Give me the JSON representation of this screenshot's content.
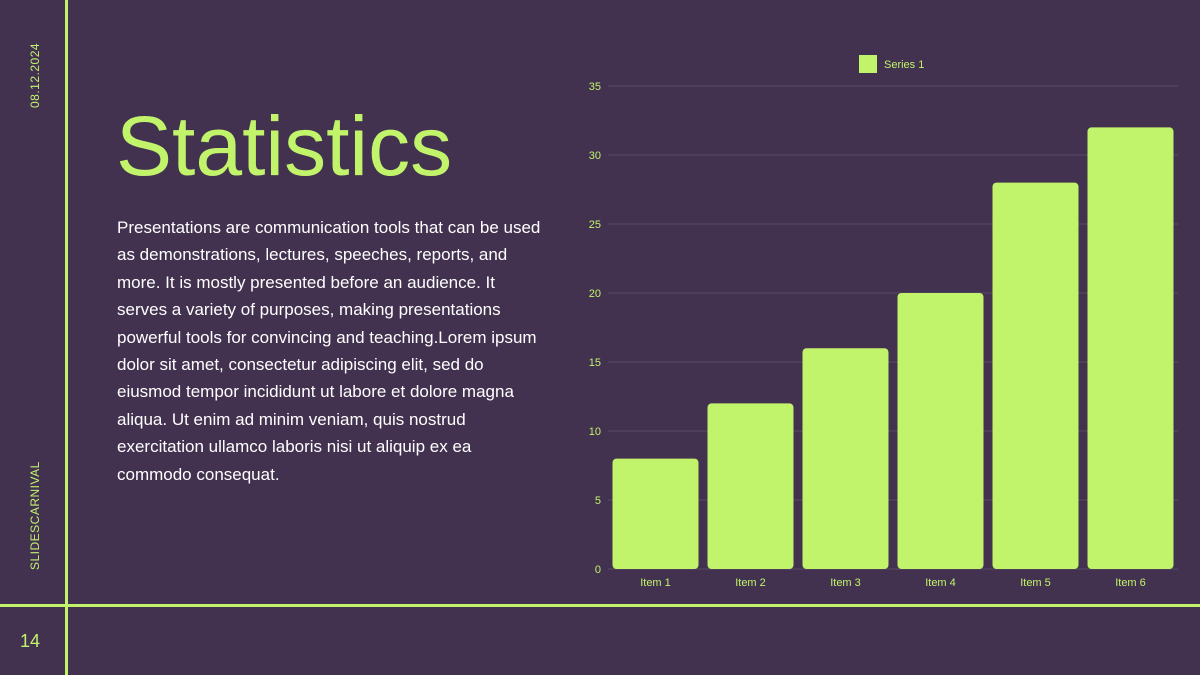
{
  "slide": {
    "date": "08.12.2024",
    "brand": "SLIDESCARNIVAL",
    "page_number": "14",
    "title": "Statistics",
    "body": "Presentations are communication tools that can be used as demonstrations, lectures, speeches, reports, and more. It is mostly presented before an audience. It serves a variety of purposes, making presentations powerful tools for convincing and teaching.Lorem ipsum dolor sit amet, consectetur adipiscing elit, sed do eiusmod tempor incididunt ut labore et dolore magna aliqua. Ut enim ad minim veniam, quis nostrud exercitation ullamco laboris nisi ut aliquip ex ea commodo consequat."
  },
  "colors": {
    "background": "#42314f",
    "accent": "#c1f46b",
    "text": "#ffffff",
    "gridline": "#5a4a66"
  },
  "chart_data": {
    "type": "bar",
    "categories": [
      "Item 1",
      "Item 2",
      "Item 3",
      "Item 4",
      "Item 5",
      "Item 6"
    ],
    "series": [
      {
        "name": "Series 1",
        "values": [
          8,
          12,
          16,
          20,
          28,
          32
        ]
      }
    ],
    "title": "",
    "xlabel": "",
    "ylabel": "",
    "ylim": [
      0,
      35
    ],
    "yticks": [
      0,
      5,
      10,
      15,
      20,
      25,
      30,
      35
    ],
    "grid": true,
    "legend_position": "top"
  }
}
